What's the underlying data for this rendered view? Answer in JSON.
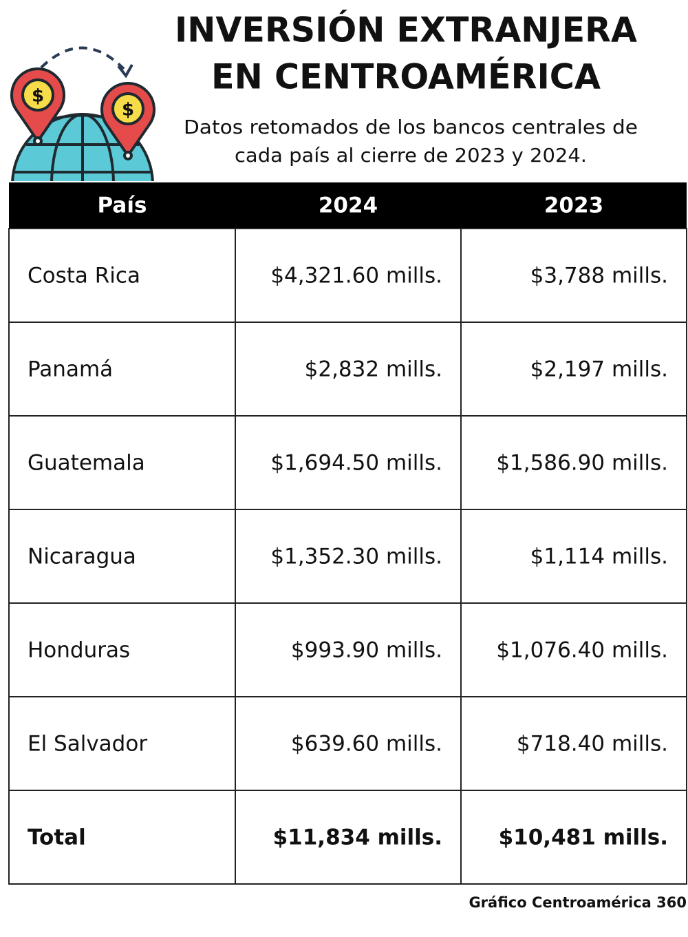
{
  "header": {
    "title": [
      "INVERSIÓN EXTRANJERA",
      "EN CENTROAMÉRICA"
    ],
    "subtitle": [
      "Datos retomados de los bancos centrales de",
      "cada país al cierre de 2023 y 2024."
    ]
  },
  "table": {
    "columns": [
      "País",
      "2024",
      "2023"
    ],
    "rows": [
      [
        "Costa Rica",
        "$4,321.60 mills.",
        "$3,788 mills."
      ],
      [
        "Panamá",
        "$2,832 mills.",
        "$2,197 mills."
      ],
      [
        "Guatemala",
        "$1,694.50 mills.",
        "$1,586.90 mills."
      ],
      [
        "Nicaragua",
        "$1,352.30 mills.",
        "$1,114 mills."
      ],
      [
        "Honduras",
        "$993.90 mills.",
        "$1,076.40 mills."
      ],
      [
        "El Salvador",
        "$639.60 mills.",
        "$718.40 mills."
      ]
    ],
    "total": [
      "Total",
      "$11,834 mills.",
      "$10,481 mills."
    ]
  },
  "footer": "Gráfico Centroamérica 360"
}
